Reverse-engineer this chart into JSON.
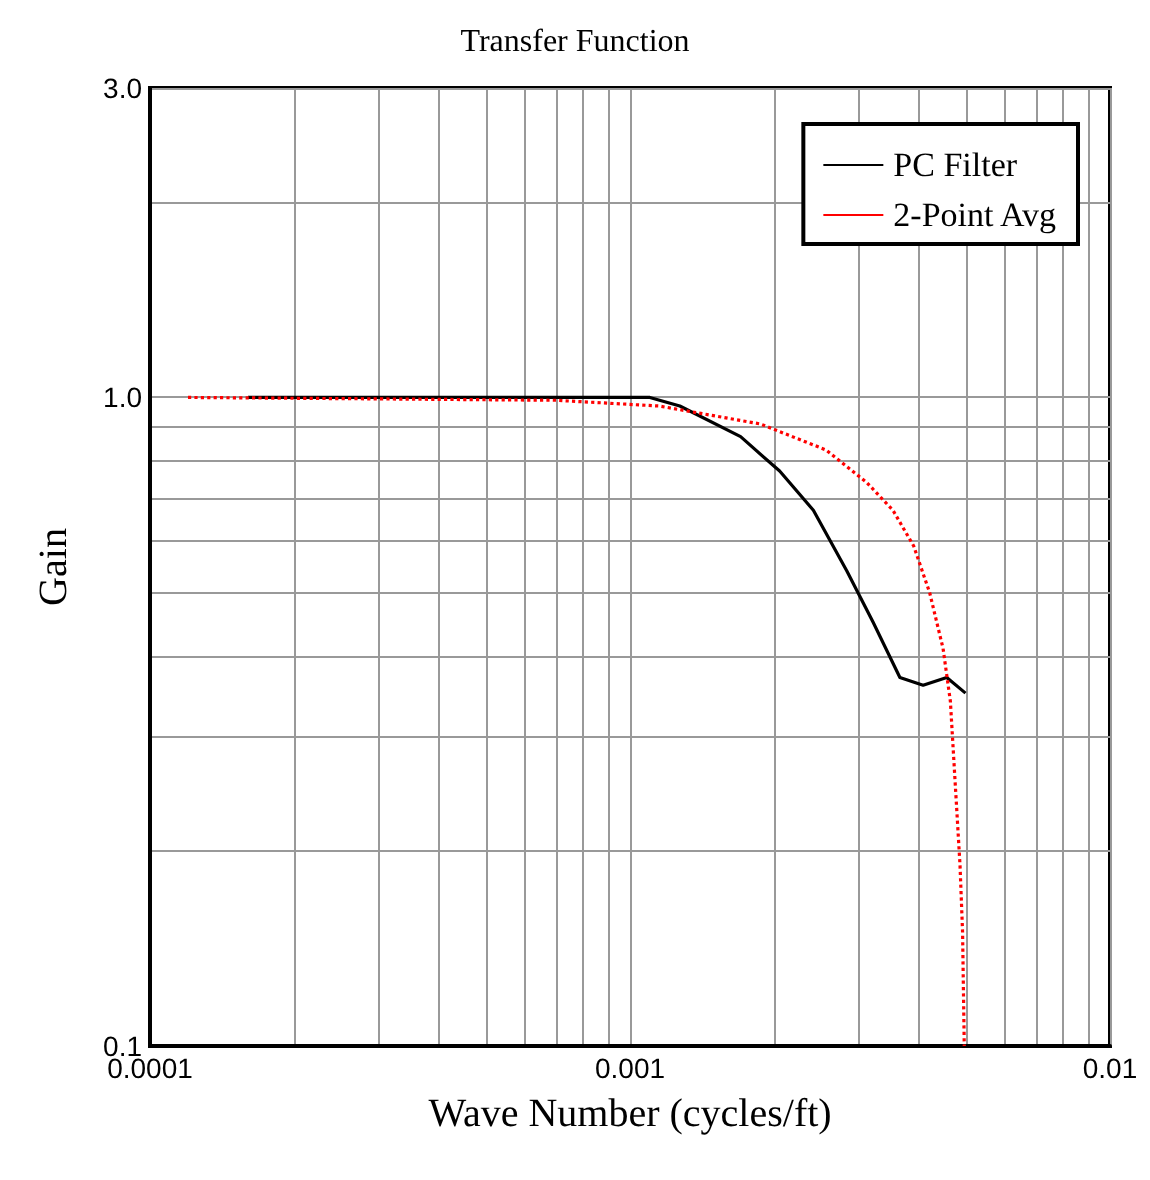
{
  "chart_data": {
    "type": "line",
    "title": "Transfer Function",
    "xlabel": "Wave Number (cycles/ft)",
    "ylabel": "Gain",
    "log": "xy",
    "grid": true,
    "legend": "top right",
    "xlim": [
      0.0001,
      0.01
    ],
    "ylim": [
      0.1,
      3
    ],
    "xticks": [
      0.0001,
      {
        "value": 0.0002,
        "label": null
      },
      {
        "value": 0.0003,
        "label": null
      },
      {
        "value": 0.0004,
        "label": null
      },
      {
        "value": 0.0005,
        "label": null
      },
      {
        "value": 0.0006,
        "label": null
      },
      {
        "value": 0.0007,
        "label": null
      },
      {
        "value": 0.0008,
        "label": null
      },
      {
        "value": 0.0009,
        "label": null
      },
      0.001,
      {
        "value": 0.002,
        "label": null
      },
      {
        "value": 0.003,
        "label": null
      },
      {
        "value": 0.004,
        "label": null
      },
      {
        "value": 0.005,
        "label": null
      },
      {
        "value": 0.006,
        "label": null
      },
      {
        "value": 0.007,
        "label": null
      },
      {
        "value": 0.008,
        "label": null
      },
      {
        "value": 0.009,
        "label": null
      },
      0.01
    ],
    "yticks": [
      0.1,
      {
        "value": 0.2,
        "label": null
      },
      {
        "value": 0.3,
        "label": null
      },
      {
        "value": 0.4,
        "label": null
      },
      {
        "value": 0.5,
        "label": null
      },
      {
        "value": 0.6,
        "label": null
      },
      {
        "value": 0.7,
        "label": null
      },
      {
        "value": 0.8,
        "label": null
      },
      {
        "value": 0.9,
        "label": null
      },
      {
        "value": 1,
        "label": "1.0"
      },
      {
        "value": 2,
        "label": null
      },
      {
        "value": 3,
        "label": "3.0"
      }
    ],
    "series": [
      {
        "name": "PC Filter",
        "color": "#000000",
        "line_style": "solid",
        "x": [
          0.00016,
          0.0011,
          0.00127,
          0.0017,
          0.00205,
          0.00241,
          0.00283,
          0.00321,
          0.00365,
          0.00408,
          0.00457,
          0.005
        ],
        "values": [
          1,
          1,
          0.97,
          0.87,
          0.77,
          0.67,
          0.54,
          0.45,
          0.37,
          0.36,
          0.37,
          0.35
        ]
      },
      {
        "name": "2-Point Avg",
        "color": "#ff0000",
        "line_style": "dotted",
        "x": [
          0.00012,
          0.0007,
          0.00115,
          0.00187,
          0.00256,
          0.00311,
          0.00353,
          0.0039,
          0.00421,
          0.00449,
          0.00465,
          0.00487,
          0.00493,
          0.00497
        ],
        "values": [
          1,
          0.99,
          0.97,
          0.91,
          0.83,
          0.74,
          0.67,
          0.59,
          0.5,
          0.41,
          0.34,
          0.19,
          0.15,
          0.1
        ]
      }
    ]
  }
}
